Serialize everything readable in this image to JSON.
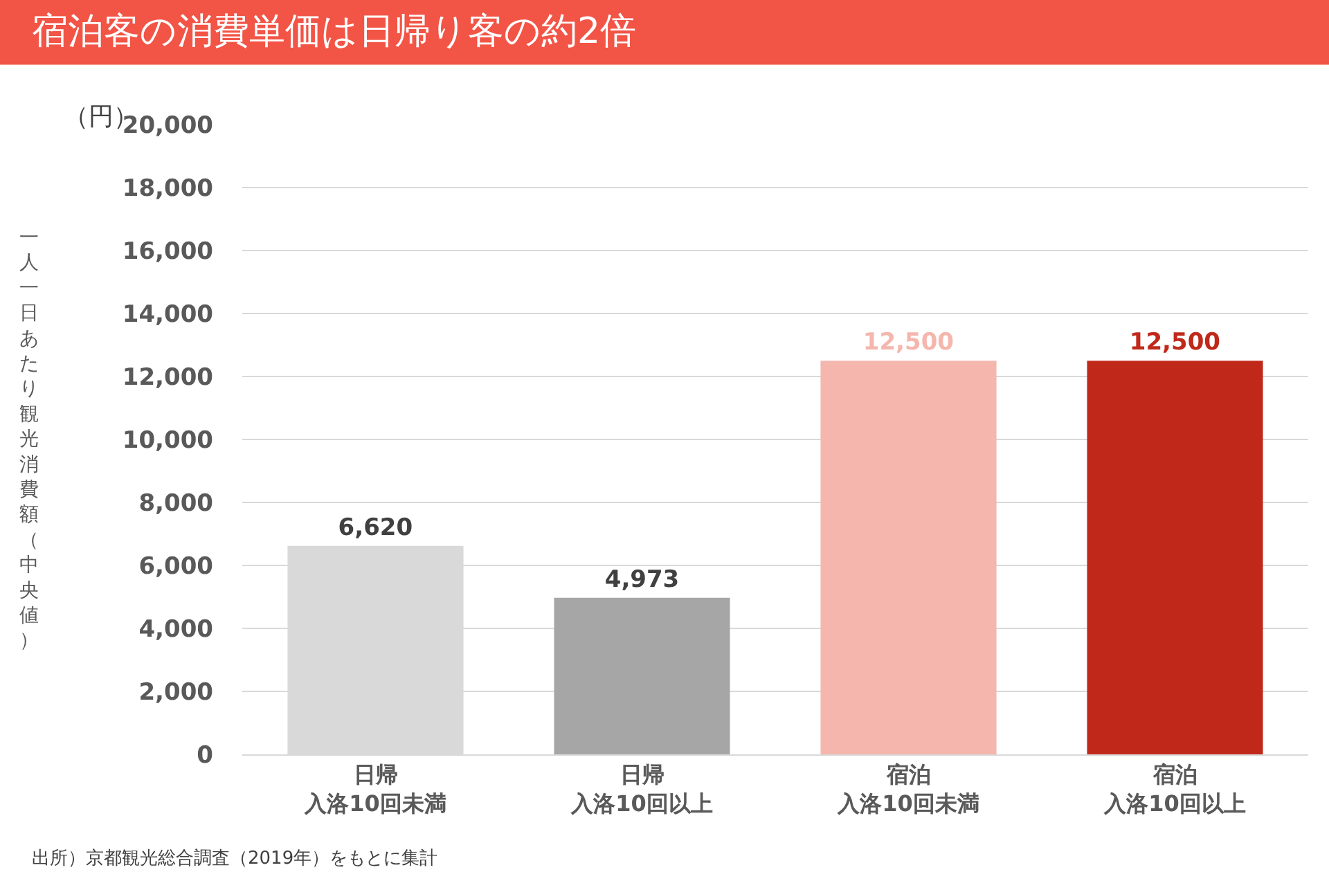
{
  "chart_data": {
    "type": "bar",
    "title": "宿泊客の消費単価は日帰り客の約2倍",
    "ylabel": "一人一日あたり観光消費額（中央値）",
    "annotations": [
      "（円）",
      "出所）京都観光総合調査（2019年）をもとに集計"
    ],
    "categories": [
      "日帰入洛10回未満",
      "日帰入洛10回以上",
      "宿泊入洛10回未満",
      "宿泊入洛10回以上"
    ],
    "values": [
      6620,
      4973,
      12500,
      12500
    ],
    "colors": [
      "#d9d9d9",
      "#a6a6a6",
      "#f4b6ad",
      "#c0291a"
    ],
    "ylim": [
      0,
      20000
    ],
    "yticks": [
      {
        "value": 0,
        "label": "0"
      },
      {
        "value": 2000,
        "label": "2,000"
      },
      {
        "value": 4000,
        "label": "4,000"
      },
      {
        "value": 6000,
        "label": "6,000"
      },
      {
        "value": 8000,
        "label": "8,000"
      },
      {
        "value": 10000,
        "label": "10,000"
      },
      {
        "value": 12000,
        "label": "12,000"
      },
      {
        "value": 14000,
        "label": "14,000"
      },
      {
        "value": 16000,
        "label": "16,000"
      },
      {
        "value": 18000,
        "label": "18,000"
      },
      {
        "value": 20000,
        "label": "20,000"
      }
    ],
    "value_labels": [
      "6,620",
      "4,973",
      "12,500",
      "12,500"
    ],
    "grid": "y",
    "legend": false
  }
}
